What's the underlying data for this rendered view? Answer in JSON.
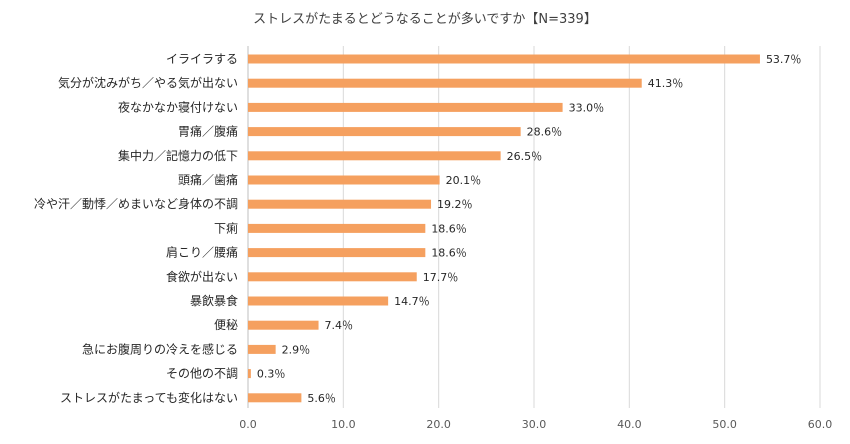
{
  "chart_data": {
    "type": "bar",
    "orientation": "horizontal",
    "title": "ストレスがたまるとどうなることが多いですか【N=339】",
    "categories": [
      "イライラする",
      "気分が沈みがち／やる気が出ない",
      "夜なかなか寝付けない",
      "胃痛／腹痛",
      "集中力／記憶力の低下",
      "頭痛／歯痛",
      "冷や汗／動悸／めまいなど身体の不調",
      "下痢",
      "肩こり／腰痛",
      "食欲が出ない",
      "暴飲暴食",
      "便秘",
      "急にお腹周りの冷えを感じる",
      "その他の不調",
      "ストレスがたまっても変化はない"
    ],
    "values": [
      53.7,
      41.3,
      33.0,
      28.6,
      26.5,
      20.1,
      19.2,
      18.6,
      18.6,
      17.7,
      14.7,
      7.4,
      2.9,
      0.3,
      5.6
    ],
    "value_labels": [
      "53.7％",
      "41.3％",
      "33.0％",
      "28.6％",
      "26.5％",
      "20.1％",
      "19.2％",
      "18.6％",
      "18.6％",
      "17.7％",
      "14.7％",
      "7.4％",
      "2.9％",
      "0.3％",
      "5.6％"
    ],
    "xlim": [
      0,
      60
    ],
    "xticks": [
      "0.0",
      "10.0",
      "20.0",
      "30.0",
      "40.0",
      "50.0",
      "60.0"
    ],
    "grid": true,
    "colors": {
      "bar": "#f5a05f"
    }
  }
}
